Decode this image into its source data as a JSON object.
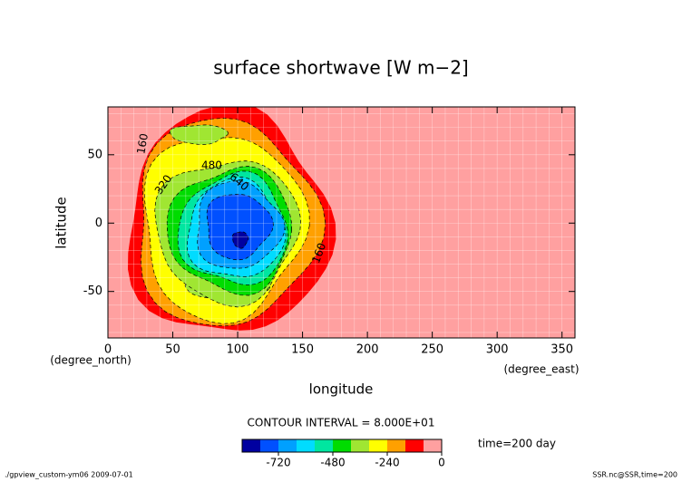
{
  "chart_data": {
    "type": "contour",
    "title": "surface shortwave [W m−2]",
    "x_label": "longitude",
    "y_label": "latitude",
    "x_unit": "(degree_east)",
    "y_unit": "(degree_north)",
    "xlim": [
      0,
      360
    ],
    "xticks": [
      0,
      50,
      100,
      150,
      200,
      250,
      300,
      350
    ],
    "ylim": [
      -84,
      85
    ],
    "yticks": [
      -50,
      0,
      50
    ],
    "grid": true,
    "contour_labels": [
      160,
      320,
      480,
      640,
      160
    ],
    "contour_interval": {
      "value": 80,
      "label": "CONTOUR INTERVAL = 8.000E+01"
    },
    "time_note": "time=200 day",
    "colorbar": {
      "lim": [
        -880,
        0
      ],
      "ticks": [
        -720,
        -480,
        -240,
        0
      ],
      "colors": [
        "#0000a0",
        "#0050ff",
        "#00a0ff",
        "#00dcff",
        "#00e6a0",
        "#00dc00",
        "#a0e632",
        "#ffff00",
        "#ffa000",
        "#ff0000",
        "#ffa0a0"
      ]
    },
    "footer_left": "./gpview_custom-ym06  2009-07-01",
    "footer_right": "SSR.nc@SSR,time=200"
  }
}
